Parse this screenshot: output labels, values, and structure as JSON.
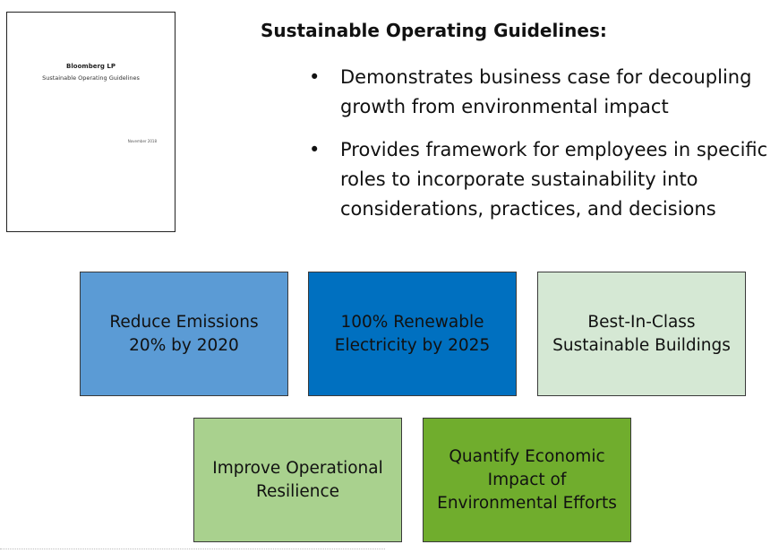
{
  "document_thumbnail": {
    "org": "Bloomberg LP",
    "title": "Sustainable Operating Guidelines",
    "date": "November 2018"
  },
  "heading": "Sustainable Operating Guidelines:",
  "bullets": [
    "Demonstrates business case for decoupling growth from environmental impact",
    "Provides framework for employees in specific roles to incorporate sustainability into considerations, practices, and decisions"
  ],
  "bullet_glyph": "•",
  "boxes": [
    {
      "label": "Reduce Emissions\n20% by 2020",
      "color": "#5b9bd5"
    },
    {
      "label": "100% Renewable\nElectricity by 2025",
      "color": "#0070c0"
    },
    {
      "label": "Best-In-Class\nSustainable Buildings",
      "color": "#d5e8d4"
    },
    {
      "label": "Improve Operational\nResilience",
      "color": "#a9d18e"
    },
    {
      "label": "Quantify Economic\nImpact of\nEnvironmental Efforts",
      "color": "#70ad2d"
    }
  ]
}
